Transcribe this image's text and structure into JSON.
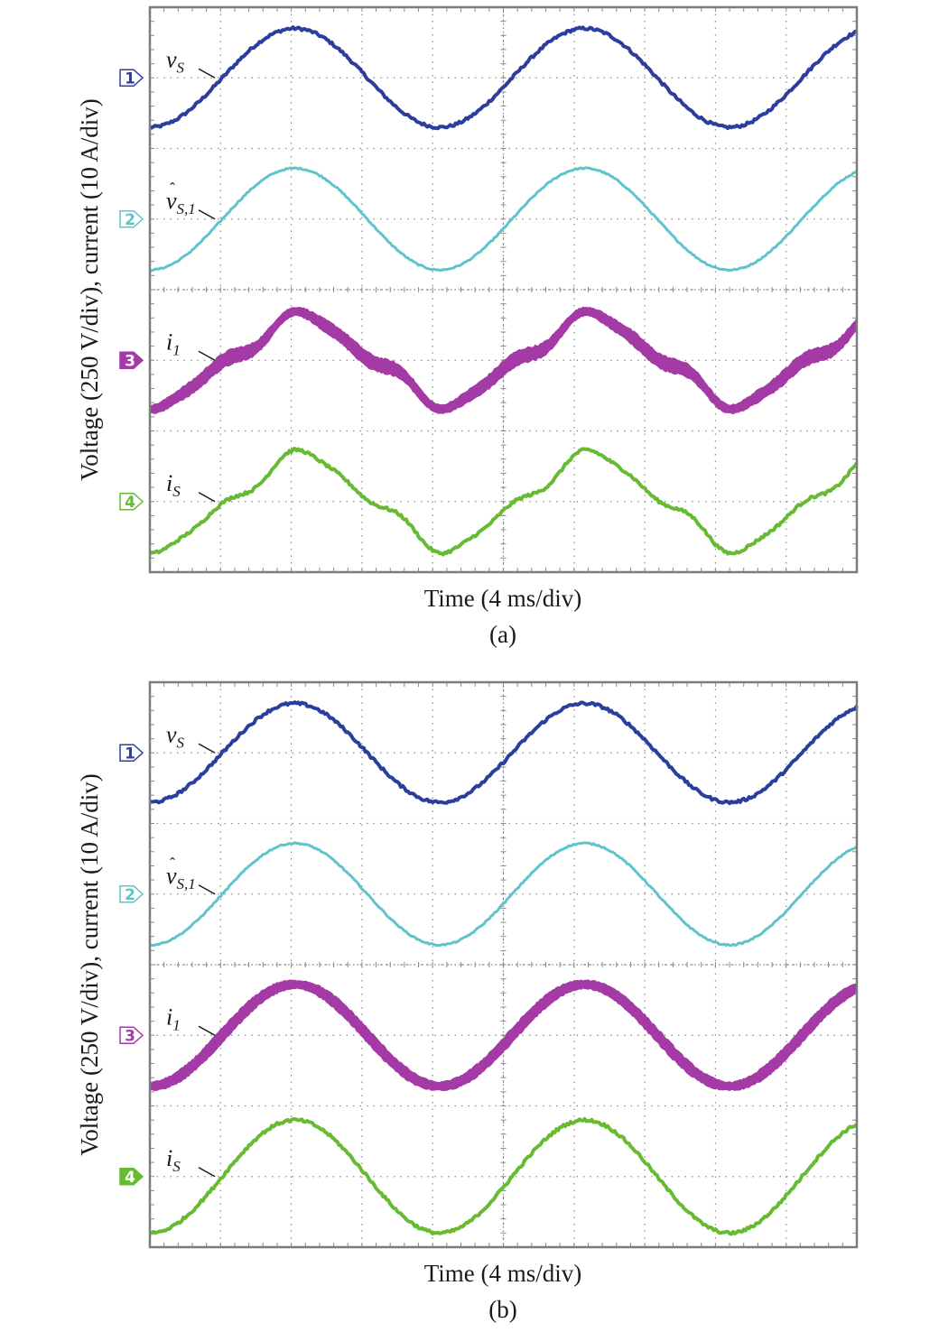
{
  "colors": {
    "ch1": "#2b3e9e",
    "ch2": "#5ec4c9",
    "ch3": "#a43aa6",
    "ch4": "#66bb33",
    "grid": "#8a8a8a",
    "frame": "#7c7c7c"
  },
  "chart_data": [
    {
      "type": "line",
      "panel_label": "(a)",
      "xlabel": "Time (4 ms/div)",
      "ylabel": "Voltage (250 V/div), current (10 A/div)",
      "x_divisions": 10,
      "y_divisions": 8,
      "grid": true,
      "channel_markers": [
        {
          "label": "1",
          "filled": false
        },
        {
          "label": "2",
          "filled": false
        },
        {
          "label": "3",
          "filled": true
        },
        {
          "label": "4",
          "filled": false
        }
      ],
      "series": [
        {
          "label_main": "v",
          "label_sub": "S",
          "label_hat": false,
          "offset_div": 7.0,
          "amp_div": 0.7,
          "phase_div": 0.0,
          "h3_div": 0.0,
          "h5_div": 0.0,
          "ripple_div": 0.02
        },
        {
          "label_main": "v",
          "label_sub": "S,1",
          "label_hat": true,
          "offset_div": 5.0,
          "amp_div": 0.72,
          "phase_div": 0.0,
          "h3_div": 0.0,
          "h5_div": 0.0,
          "ripple_div": 0.01
        },
        {
          "label_main": "i",
          "label_sub": "1",
          "label_hat": false,
          "offset_div": 3.0,
          "amp_div": 0.58,
          "phase_div": -0.1,
          "h3_div": 0.1,
          "h5_div": 0.04,
          "ripple_div": 0.2
        },
        {
          "label_main": "i",
          "label_sub": "S",
          "label_hat": false,
          "offset_div": 1.0,
          "amp_div": 0.62,
          "phase_div": -0.1,
          "h3_div": 0.1,
          "h5_div": 0.04,
          "ripple_div": 0.02
        }
      ]
    },
    {
      "type": "line",
      "panel_label": "(b)",
      "xlabel": "Time (4 ms/div)",
      "ylabel": "Voltage (250 V/div), current (10 A/div)",
      "x_divisions": 10,
      "y_divisions": 8,
      "grid": true,
      "channel_markers": [
        {
          "label": "1",
          "filled": false
        },
        {
          "label": "2",
          "filled": false
        },
        {
          "label": "3",
          "filled": false
        },
        {
          "label": "4",
          "filled": true
        }
      ],
      "series": [
        {
          "label_main": "v",
          "label_sub": "S",
          "label_hat": false,
          "offset_div": 7.0,
          "amp_div": 0.7,
          "phase_div": 0.0,
          "h3_div": 0.0,
          "h5_div": 0.0,
          "ripple_div": 0.02
        },
        {
          "label_main": "v",
          "label_sub": "S,1",
          "label_hat": true,
          "offset_div": 5.0,
          "amp_div": 0.72,
          "phase_div": 0.0,
          "h3_div": 0.0,
          "h5_div": 0.0,
          "ripple_div": 0.01
        },
        {
          "label_main": "i",
          "label_sub": "1",
          "label_hat": false,
          "offset_div": 3.0,
          "amp_div": 0.72,
          "phase_div": 0.0,
          "h3_div": 0.0,
          "h5_div": 0.0,
          "ripple_div": 0.19
        },
        {
          "label_main": "i",
          "label_sub": "S",
          "label_hat": false,
          "offset_div": 1.0,
          "amp_div": 0.8,
          "phase_div": 0.0,
          "h3_div": 0.0,
          "h5_div": 0.0,
          "ripple_div": 0.02
        }
      ]
    }
  ]
}
